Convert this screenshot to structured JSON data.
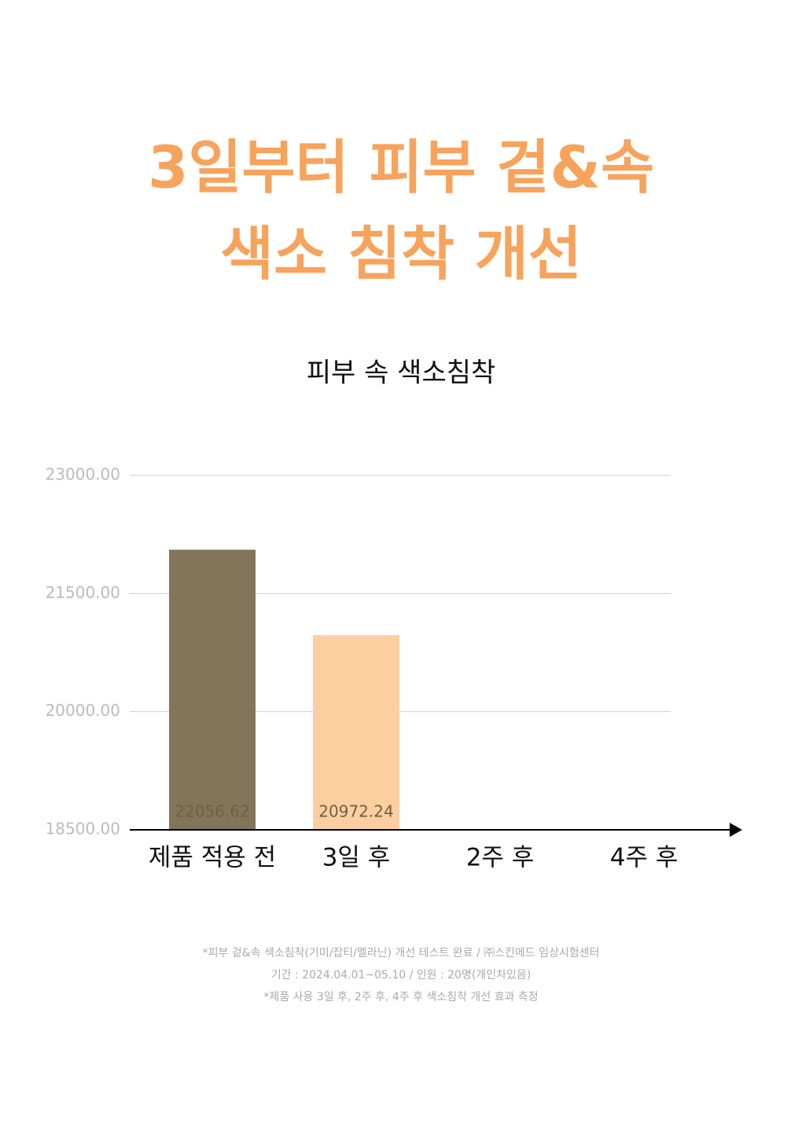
{
  "chart_data": {
    "type": "bar",
    "headline": [
      "3일부터 피부 겉&속",
      "색소 침착 개선"
    ],
    "title": "피부 속 색소침착",
    "categories": [
      "제품 적용 전",
      "3일 후",
      "2주 후",
      "4주 후"
    ],
    "values": [
      22056.62,
      20972.24,
      null,
      null
    ],
    "colors": [
      "#83755a",
      "#fdcfa0",
      "#fdcfa0",
      "#fdcfa0"
    ],
    "ylim": [
      18500,
      23000
    ],
    "yticks": [
      {
        "value": 18500,
        "label": "18500.00"
      },
      {
        "value": 20000,
        "label": "20000.00"
      },
      {
        "value": 21500,
        "label": "21500.00"
      },
      {
        "value": 23000,
        "label": "23000.00"
      }
    ],
    "grid": true,
    "notes": [
      "*피부 겉&속 색소침착(기미/잡티/멜라닌) 개선 테스트 완료 / ㈜스킨메드 임상시험센터",
      "기간 : 2024.04.01~05.10 / 인원 : 20명(개인차있음)",
      "*제품 사용 3일 후, 2주 후, 4주 후 색소침착 개선 효과 측정"
    ]
  }
}
